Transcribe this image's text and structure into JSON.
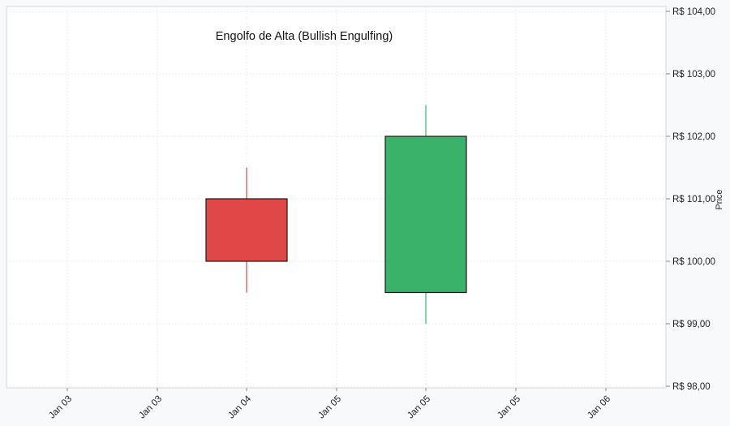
{
  "chart_data": {
    "type": "candlestick",
    "title": "Engolfo de Alta (Bullish Engulfing)",
    "xlabel": "",
    "ylabel": "Price",
    "ylim": [
      98,
      104
    ],
    "y_ticks": [
      "R$ 98,00",
      "R$ 99,00",
      "R$ 100,00",
      "R$ 101,00",
      "R$ 102,00",
      "R$ 103,00",
      "R$ 104,00"
    ],
    "y_tick_values": [
      98,
      99,
      100,
      101,
      102,
      103,
      104
    ],
    "x_ticks": [
      "Jan 03",
      "Jan 03",
      "Jan 04",
      "Jan 05",
      "Jan 05",
      "Jan 05",
      "Jan 06"
    ],
    "grid": true,
    "y_axis_position": "right",
    "candles": [
      {
        "date": "Jan 04",
        "open": 101.0,
        "high": 101.5,
        "low": 99.5,
        "close": 100.0,
        "color": "#e04848"
      },
      {
        "date": "Jan 05",
        "open": 99.5,
        "high": 102.5,
        "low": 99.0,
        "close": 102.0,
        "color": "#3bb26a"
      }
    ]
  },
  "colors": {
    "bearish": "#e04848",
    "bullish": "#3bb26a",
    "plot_bg": "#ffffff",
    "page_bg": "#f8f9fb",
    "border": "#d3d6dc"
  }
}
